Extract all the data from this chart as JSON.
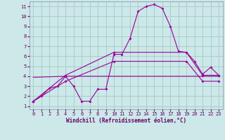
{
  "background_color": "#cce8e8",
  "grid_color": "#aacccc",
  "line_color": "#990099",
  "xlabel": "Windchill (Refroidissement éolien,°C)",
  "ylabel_ticks": [
    1,
    2,
    3,
    4,
    5,
    6,
    7,
    8,
    9,
    10,
    11
  ],
  "xlabel_ticks": [
    0,
    1,
    2,
    3,
    4,
    5,
    6,
    7,
    8,
    9,
    10,
    11,
    12,
    13,
    14,
    15,
    16,
    17,
    18,
    19,
    20,
    21,
    22,
    23
  ],
  "xlim": [
    -0.5,
    23.5
  ],
  "ylim": [
    0.7,
    11.5
  ],
  "series1_x": [
    0,
    1,
    2,
    3,
    4,
    5,
    6,
    7,
    8,
    9,
    10,
    11,
    12,
    13,
    14,
    15,
    16,
    17,
    18,
    19,
    20,
    21,
    22,
    23
  ],
  "series1_y": [
    1.5,
    2.0,
    2.8,
    3.0,
    4.0,
    3.0,
    1.5,
    1.5,
    2.7,
    2.7,
    6.2,
    6.2,
    7.8,
    10.5,
    11.0,
    11.2,
    10.8,
    9.0,
    6.5,
    6.4,
    5.5,
    4.2,
    4.9,
    4.1
  ],
  "series2_x": [
    0,
    4,
    10,
    19,
    21,
    23
  ],
  "series2_y": [
    1.5,
    4.1,
    6.4,
    6.4,
    4.1,
    4.1
  ],
  "series3_x": [
    0,
    4,
    10,
    19,
    21,
    23
  ],
  "series3_y": [
    1.5,
    3.5,
    5.5,
    5.5,
    3.5,
    3.5
  ],
  "series4_x": [
    0,
    4,
    23
  ],
  "series4_y": [
    3.9,
    4.0,
    4.0
  ]
}
